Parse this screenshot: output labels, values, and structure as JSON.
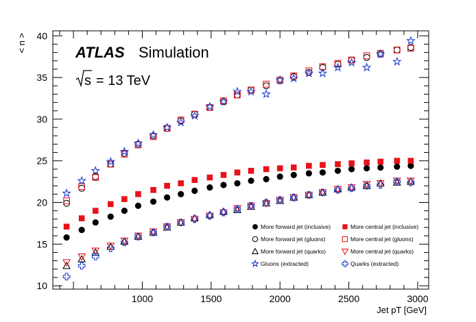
{
  "chart_data": {
    "type": "scatter",
    "title": "",
    "xlabel": "Jet pT [GeV]",
    "ylabel": "< n >",
    "xlim": [
      350,
      3080
    ],
    "ylim": [
      9.6,
      40.6
    ],
    "xticks": [
      1000,
      1500,
      2000,
      2500,
      3000
    ],
    "yticks": [
      10,
      15,
      20,
      25,
      30,
      35,
      40
    ],
    "grid": false,
    "legend_position": "bottom-right",
    "annotations": {
      "experiment": "ATLAS",
      "label": "Simulation",
      "sqrt": "s",
      "energy": "= 13 TeV"
    },
    "x": [
      450,
      560,
      660,
      770,
      870,
      970,
      1080,
      1180,
      1280,
      1380,
      1490,
      1590,
      1690,
      1790,
      1900,
      2000,
      2100,
      2210,
      2310,
      2420,
      2520,
      2630,
      2730,
      2850,
      2950
    ],
    "series": [
      {
        "name": "More forward jet (inclusive)",
        "marker": "filled-circle",
        "color": "#000000",
        "values": [
          15.8,
          16.7,
          17.6,
          18.3,
          19.0,
          19.6,
          20.1,
          20.6,
          21.0,
          21.4,
          21.8,
          22.1,
          22.3,
          22.6,
          22.8,
          23.1,
          23.3,
          23.5,
          23.6,
          23.8,
          24.0,
          24.1,
          24.2,
          24.3,
          24.4
        ]
      },
      {
        "name": "More central jet (inclusive)",
        "marker": "filled-square",
        "color": "#e8131a",
        "values": [
          17.1,
          18.1,
          19.0,
          19.8,
          20.4,
          21.0,
          21.5,
          22.0,
          22.3,
          22.7,
          23.0,
          23.3,
          23.6,
          23.8,
          24.0,
          24.1,
          24.2,
          24.4,
          24.5,
          24.6,
          24.7,
          24.8,
          24.9,
          25.0,
          25.0
        ]
      },
      {
        "name": "More forward jet (gluons)",
        "marker": "open-circle",
        "color": "#000000",
        "values": [
          19.9,
          21.7,
          23.1,
          24.6,
          25.9,
          27.0,
          28.0,
          28.9,
          29.8,
          30.6,
          31.4,
          32.1,
          32.9,
          33.5,
          34.0,
          34.6,
          35.1,
          35.6,
          36.2,
          36.6,
          37.1,
          37.4,
          37.8,
          38.3,
          38.6
        ]
      },
      {
        "name": "More central jet (gluons)",
        "marker": "open-square",
        "color": "#e8131a",
        "values": [
          20.2,
          21.9,
          23.0,
          24.6,
          25.8,
          26.9,
          27.9,
          28.9,
          29.9,
          30.6,
          31.4,
          32.2,
          32.9,
          33.5,
          34.2,
          34.7,
          35.2,
          35.8,
          36.3,
          36.7,
          37.1,
          37.6,
          37.9,
          38.3,
          38.5
        ]
      },
      {
        "name": "More forward jet (quarks)",
        "marker": "open-triangle-up",
        "color": "#000000",
        "values": [
          12.4,
          13.2,
          14.0,
          14.7,
          15.3,
          15.9,
          16.4,
          17.0,
          17.6,
          18.1,
          18.5,
          18.9,
          19.1,
          19.5,
          19.9,
          20.2,
          20.6,
          20.9,
          21.2,
          21.6,
          21.8,
          22.0,
          22.3,
          22.4,
          22.5
        ]
      },
      {
        "name": "More central jet (quarks)",
        "marker": "open-triangle-down",
        "color": "#e8131a",
        "values": [
          12.8,
          13.5,
          14.2,
          14.8,
          15.4,
          16.0,
          16.5,
          17.1,
          17.6,
          18.0,
          18.4,
          18.8,
          19.3,
          19.6,
          19.9,
          20.3,
          20.6,
          20.9,
          21.2,
          21.6,
          21.8,
          22.2,
          22.3,
          22.6,
          22.6
        ]
      },
      {
        "name": "Gluons (extracted)",
        "marker": "open-star",
        "color": "#1f3fcf",
        "values": [
          21.1,
          22.6,
          23.8,
          24.9,
          26.1,
          27.1,
          28.1,
          29.0,
          29.6,
          30.4,
          31.5,
          32.1,
          33.3,
          33.3,
          33.0,
          34.7,
          34.9,
          35.5,
          35.5,
          36.2,
          36.8,
          36.2,
          37.8,
          36.9,
          39.4
        ]
      },
      {
        "name": "Quarks (extracted)",
        "marker": "open-cross",
        "color": "#1f3fcf",
        "values": [
          11.1,
          12.4,
          13.5,
          14.5,
          15.2,
          15.9,
          16.4,
          17.1,
          17.6,
          18.0,
          18.4,
          18.8,
          19.2,
          19.6,
          20.0,
          20.3,
          20.6,
          20.9,
          21.2,
          21.5,
          21.7,
          22.0,
          22.1,
          22.5,
          22.4
        ]
      }
    ]
  }
}
